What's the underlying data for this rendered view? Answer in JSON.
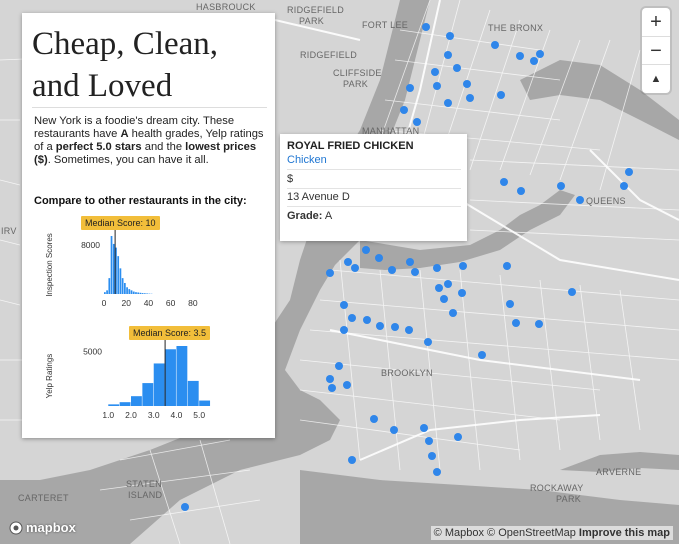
{
  "panel": {
    "title_line1": "Cheap, Clean,",
    "title_line2": "and Loved",
    "desc_1": "New York is a foodie's dream city. These restaurants have ",
    "desc_2": "A",
    "desc_3": " health grades, Yelp ratings of a ",
    "desc_4": "perfect 5.0 stars",
    "desc_5": " and the ",
    "desc_6": "lowest prices ($)",
    "desc_7": ". Sometimes, you can have it all.",
    "compare_label": "Compare to other restaurants in the city:"
  },
  "chart_data": [
    {
      "type": "bar",
      "ylabel": "Inspection Scores",
      "median_label": "Median Score:",
      "median_value": "10",
      "median": 10,
      "y_tick": "8000",
      "y_tick_value": 8000,
      "x_ticks": [
        "0",
        "20",
        "40",
        "60",
        "80"
      ],
      "xlim": [
        0,
        90
      ],
      "bins": [
        0,
        2,
        4,
        6,
        8,
        10,
        12,
        14,
        16,
        18,
        20,
        22,
        24,
        26,
        28,
        30,
        32,
        34,
        36,
        38,
        40,
        42
      ],
      "values": [
        300,
        600,
        2600,
        9500,
        8200,
        7600,
        6200,
        4200,
        2600,
        1800,
        1100,
        800,
        600,
        400,
        300,
        250,
        200,
        150,
        120,
        90,
        60,
        40
      ],
      "color": "#2b8ef0"
    },
    {
      "type": "bar",
      "ylabel": "Yelp Ratings",
      "median_label": "Median Score:",
      "median_value": "3.5",
      "median": 3.5,
      "y_tick": "5000",
      "y_tick_value": 5000,
      "x_ticks": [
        "1.0",
        "2.0",
        "3.0",
        "4.0",
        "5.0"
      ],
      "xlim": [
        0.9,
        5.3
      ],
      "bins": [
        1.0,
        1.5,
        2.0,
        2.5,
        3.0,
        3.5,
        4.0,
        4.5,
        5.0
      ],
      "values": [
        150,
        350,
        900,
        2100,
        3900,
        5200,
        5500,
        2300,
        500
      ],
      "color": "#2b8ef0"
    }
  ],
  "popup": {
    "name": "ROYAL FRIED CHICKEN",
    "category": "Chicken",
    "price": "$",
    "address": "13 Avenue D",
    "grade_label": "Grade:",
    "grade_value": "A"
  },
  "map": {
    "labels": {
      "hasbrouck": "HASBROUCK",
      "ridgefield_park": "RIDGEFIELD",
      "ridgefield_park2": "PARK",
      "fort_lee": "FORT LEE",
      "bronx": "THE BRONX",
      "ridgefield": "RIDGEFIELD",
      "cliffside": "CLIFFSIDE",
      "cliffside2": "PARK",
      "manhattan": "MANHATTAN",
      "queens": "QUEENS",
      "irv": "IRV",
      "brooklyn": "BROOKLYN",
      "arverne": "ARVERNE",
      "rockaway": "ROCKAWAY",
      "rockaway2": "PARK",
      "staten": "STATEN",
      "staten2": "ISLAND",
      "carteret": "CARTERET"
    },
    "marker_color": "#2f86ea"
  },
  "zoom": {
    "in": "+",
    "out": "−",
    "compass": "▲"
  },
  "attribution": {
    "mapbox": "© Mapbox",
    "osm": "© OpenStreetMap",
    "improve": "Improve this map",
    "logo": "mapbox"
  }
}
